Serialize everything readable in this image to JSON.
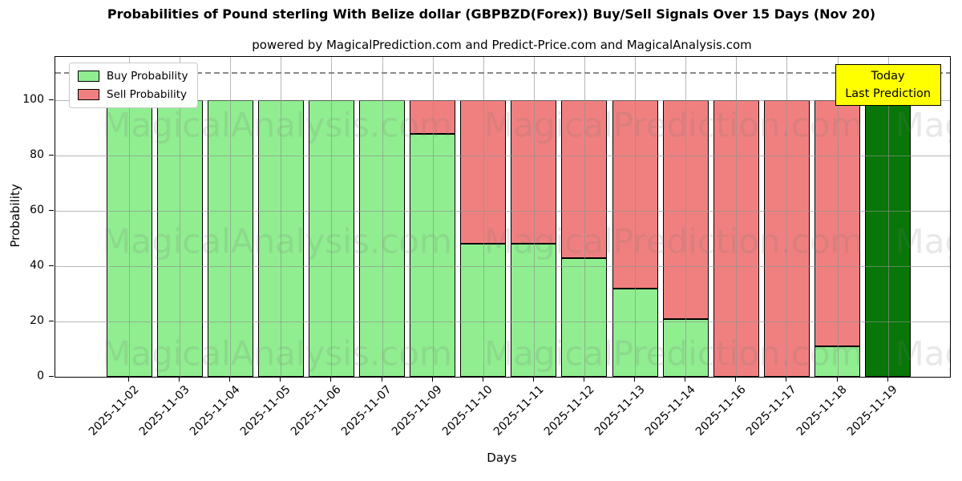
{
  "chart_data": {
    "type": "bar",
    "stacked": true,
    "title": "Probabilities of Pound sterling With Belize dollar (GBPBZD(Forex)) Buy/Sell Signals Over 15 Days (Nov 20)",
    "subtitle": "powered by MagicalPrediction.com and Predict-Price.com and MagicalAnalysis.com",
    "xlabel": "Days",
    "ylabel": "Probability",
    "ylim": [
      0,
      115.7
    ],
    "yticks": [
      0,
      20,
      40,
      60,
      80,
      100
    ],
    "grid": true,
    "legend_position": "upper left",
    "categories": [
      "2025-11-02",
      "2025-11-03",
      "2025-11-04",
      "2025-11-05",
      "2025-11-06",
      "2025-11-07",
      "2025-11-09",
      "2025-11-10",
      "2025-11-11",
      "2025-11-12",
      "2025-11-13",
      "2025-11-14",
      "2025-11-16",
      "2025-11-17",
      "2025-11-18",
      "2025-11-19"
    ],
    "series": [
      {
        "name": "Buy Probability",
        "color": "#90ee90",
        "values": [
          100,
          100,
          100,
          100,
          100,
          100,
          88,
          48,
          48,
          43,
          32,
          21,
          0,
          0,
          11,
          100
        ]
      },
      {
        "name": "Sell Probability",
        "color": "#f08080",
        "values": [
          0,
          0,
          0,
          0,
          0,
          0,
          12,
          52,
          52,
          57,
          68,
          79,
          100,
          100,
          89,
          0
        ]
      }
    ],
    "today_bar": {
      "index": 15,
      "category": "2025-11-19",
      "color": "#087608"
    },
    "dashed_line_y": 110,
    "annotation": {
      "lines": [
        "Today",
        "Last Prediction"
      ],
      "bg_color": "#ffff00",
      "border_color": "#000000"
    },
    "watermarks": [
      "MagicalAnalysis.com",
      "MagicalPrediction.com"
    ],
    "colors": {
      "grid": "#919191",
      "spine": "#000000",
      "dashed_line": "#8a8a8a"
    }
  }
}
